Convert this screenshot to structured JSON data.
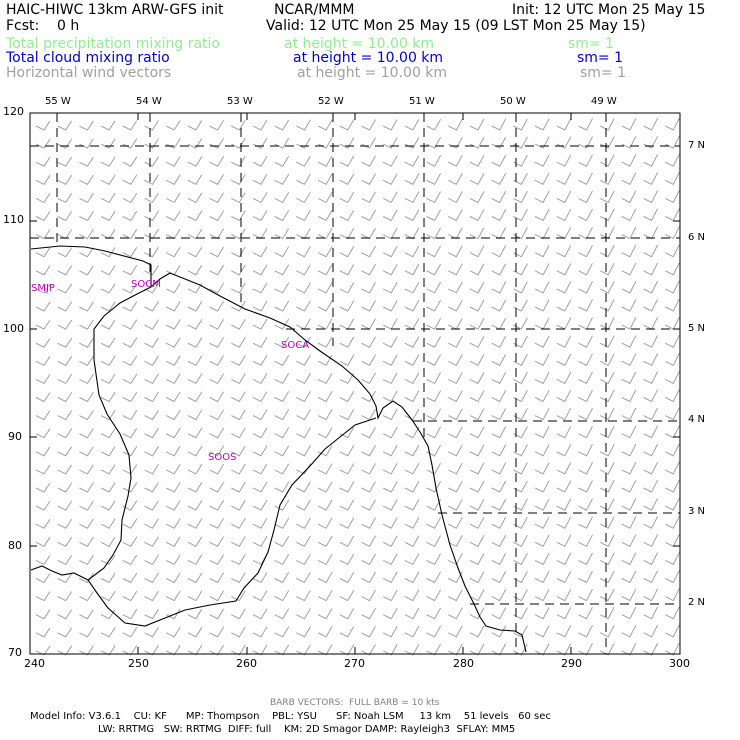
{
  "header": {
    "model": "HAIC-HIWC 13km ARW-GFS init",
    "org": "NCAR/MMM",
    "init": "Init: 12 UTC Mon 25 May 15",
    "fcst": "Fcst:    0 h",
    "valid": "Valid: 12 UTC Mon 25 May 15 (09 LST Mon 25 May 15)"
  },
  "fields": [
    {
      "name": "Total precipitation mixing ratio",
      "height": "at height = 10.00 km",
      "sm": "sm= 1",
      "color": "#90ee90"
    },
    {
      "name": "Total cloud mixing ratio",
      "height": "at height = 10.00 km",
      "sm": "sm= 1",
      "color": "#0000cc"
    },
    {
      "name": "Horizontal wind vectors",
      "height": "at height = 10.00 km",
      "sm": "sm= 1",
      "color": "#a0a0a0"
    }
  ],
  "axes": {
    "x_ticks": [
      "240",
      "250",
      "260",
      "270",
      "280",
      "290",
      "300"
    ],
    "y_ticks": [
      "70",
      "80",
      "90",
      "100",
      "110",
      "120"
    ],
    "lon_labels": [
      "55 W",
      "54 W",
      "53 W",
      "52 W",
      "51 W",
      "50 W",
      "49 W"
    ],
    "lat_labels": [
      "7 N",
      "6 N",
      "5 N",
      "4 N",
      "3 N",
      "2 N"
    ]
  },
  "sites": [
    "SMJP",
    "SOCM",
    "SOCA",
    "SOOS"
  ],
  "footer": {
    "barb": "BARB VECTORS:  FULL BARB = 10 kts",
    "line1": "Model Info: V3.6.1    CU: KF      MP: Thompson    PBL: YSU      SF: Noah LSM     13 km    51 levels   60 sec",
    "line2": "LW: RRTMG   SW: RRTMG  DIFF: full    KM: 2D Smagor DAMP: Rayleigh3  SFLAY: MM5"
  },
  "colors": {
    "coast": "#000000",
    "barb": "#a0a0a0",
    "grid": "#000000",
    "site": "#c000c0"
  }
}
